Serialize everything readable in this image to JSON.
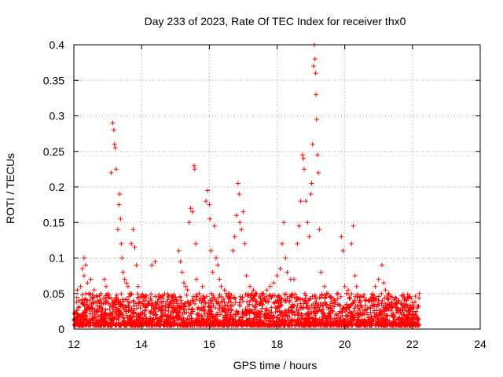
{
  "chart_data": {
    "type": "scatter",
    "title": "Day 233 of 2023, Rate Of TEC Index for receiver thx0",
    "xlabel": "GPS time / hours",
    "ylabel": "ROTI / TECUs",
    "xlim": [
      12,
      24
    ],
    "ylim": [
      0,
      0.4
    ],
    "xticks": [
      "12",
      "14",
      "16",
      "18",
      "20",
      "22",
      "24"
    ],
    "xtick_values": [
      12,
      14,
      16,
      18,
      20,
      22,
      24
    ],
    "yticks": [
      "0",
      "0.05",
      "0.1",
      "0.15",
      "0.2",
      "0.25",
      "0.3",
      "0.35",
      "0.4"
    ],
    "ytick_values": [
      0,
      0.05,
      0.1,
      0.15,
      0.2,
      0.25,
      0.3,
      0.35,
      0.4
    ],
    "grid": true,
    "marker": "+",
    "color": "#ff0000",
    "data_extent_hours": [
      12.0,
      22.2
    ],
    "series": [
      {
        "name": "thx0",
        "points": [
          [
            12.1,
            0.055
          ],
          [
            12.15,
            0.04
          ],
          [
            12.2,
            0.06
          ],
          [
            12.25,
            0.085
          ],
          [
            12.3,
            0.1
          ],
          [
            12.3,
            0.075
          ],
          [
            12.35,
            0.09
          ],
          [
            12.4,
            0.065
          ],
          [
            12.45,
            0.05
          ],
          [
            12.5,
            0.07
          ],
          [
            12.55,
            0.045
          ],
          [
            12.6,
            0.055
          ],
          [
            12.7,
            0.04
          ],
          [
            12.8,
            0.05
          ],
          [
            12.9,
            0.07
          ],
          [
            12.95,
            0.06
          ],
          [
            13.0,
            0.05
          ],
          [
            13.05,
            0.045
          ],
          [
            13.1,
            0.22
          ],
          [
            13.15,
            0.29
          ],
          [
            13.18,
            0.28
          ],
          [
            13.2,
            0.26
          ],
          [
            13.22,
            0.255
          ],
          [
            13.25,
            0.225
          ],
          [
            13.3,
            0.14
          ],
          [
            13.33,
            0.175
          ],
          [
            13.35,
            0.19
          ],
          [
            13.38,
            0.155
          ],
          [
            13.4,
            0.12
          ],
          [
            13.42,
            0.1
          ],
          [
            13.45,
            0.08
          ],
          [
            13.5,
            0.07
          ],
          [
            13.55,
            0.065
          ],
          [
            13.6,
            0.06
          ],
          [
            13.65,
            0.05
          ],
          [
            13.7,
            0.12
          ],
          [
            13.75,
            0.14
          ],
          [
            13.8,
            0.115
          ],
          [
            13.85,
            0.09
          ],
          [
            13.9,
            0.06
          ],
          [
            14.0,
            0.045
          ],
          [
            14.1,
            0.04
          ],
          [
            14.2,
            0.035
          ],
          [
            14.3,
            0.09
          ],
          [
            14.4,
            0.095
          ],
          [
            14.5,
            0.045
          ],
          [
            14.6,
            0.03
          ],
          [
            14.8,
            0.03
          ],
          [
            15.0,
            0.025
          ],
          [
            15.1,
            0.11
          ],
          [
            15.15,
            0.095
          ],
          [
            15.2,
            0.08
          ],
          [
            15.25,
            0.065
          ],
          [
            15.3,
            0.06
          ],
          [
            15.35,
            0.055
          ],
          [
            15.4,
            0.15
          ],
          [
            15.45,
            0.17
          ],
          [
            15.5,
            0.165
          ],
          [
            15.55,
            0.23
          ],
          [
            15.57,
            0.225
          ],
          [
            15.6,
            0.12
          ],
          [
            15.62,
            0.07
          ],
          [
            15.7,
            0.05
          ],
          [
            15.8,
            0.06
          ],
          [
            15.9,
            0.18
          ],
          [
            15.95,
            0.195
          ],
          [
            16.0,
            0.175
          ],
          [
            16.02,
            0.155
          ],
          [
            16.05,
            0.11
          ],
          [
            16.1,
            0.08
          ],
          [
            16.15,
            0.145
          ],
          [
            16.2,
            0.1
          ],
          [
            16.25,
            0.09
          ],
          [
            16.3,
            0.07
          ],
          [
            16.35,
            0.06
          ],
          [
            16.45,
            0.055
          ],
          [
            16.5,
            0.05
          ],
          [
            16.6,
            0.05
          ],
          [
            16.7,
            0.11
          ],
          [
            16.75,
            0.13
          ],
          [
            16.8,
            0.16
          ],
          [
            16.85,
            0.205
          ],
          [
            16.88,
            0.19
          ],
          [
            16.9,
            0.15
          ],
          [
            16.95,
            0.14
          ],
          [
            17.0,
            0.165
          ],
          [
            17.05,
            0.12
          ],
          [
            17.1,
            0.075
          ],
          [
            17.2,
            0.06
          ],
          [
            17.3,
            0.055
          ],
          [
            17.4,
            0.05
          ],
          [
            17.5,
            0.045
          ],
          [
            17.6,
            0.05
          ],
          [
            17.7,
            0.055
          ],
          [
            17.8,
            0.06
          ],
          [
            17.9,
            0.065
          ],
          [
            18.0,
            0.075
          ],
          [
            18.1,
            0.085
          ],
          [
            18.15,
            0.12
          ],
          [
            18.2,
            0.15
          ],
          [
            18.25,
            0.1
          ],
          [
            18.3,
            0.08
          ],
          [
            18.4,
            0.07
          ],
          [
            18.5,
            0.07
          ],
          [
            18.6,
            0.12
          ],
          [
            18.65,
            0.145
          ],
          [
            18.7,
            0.18
          ],
          [
            18.75,
            0.245
          ],
          [
            18.78,
            0.24
          ],
          [
            18.8,
            0.225
          ],
          [
            18.85,
            0.18
          ],
          [
            18.9,
            0.15
          ],
          [
            18.95,
            0.13
          ],
          [
            19.0,
            0.19
          ],
          [
            19.02,
            0.205
          ],
          [
            19.05,
            0.26
          ],
          [
            19.08,
            0.37
          ],
          [
            19.1,
            0.4
          ],
          [
            19.12,
            0.38
          ],
          [
            19.14,
            0.36
          ],
          [
            19.15,
            0.33
          ],
          [
            19.17,
            0.295
          ],
          [
            19.2,
            0.245
          ],
          [
            19.22,
            0.22
          ],
          [
            19.25,
            0.14
          ],
          [
            19.3,
            0.08
          ],
          [
            19.4,
            0.06
          ],
          [
            19.5,
            0.05
          ],
          [
            19.6,
            0.045
          ],
          [
            19.7,
            0.04
          ],
          [
            19.8,
            0.05
          ],
          [
            19.9,
            0.13
          ],
          [
            19.95,
            0.11
          ],
          [
            20.0,
            0.06
          ],
          [
            20.05,
            0.05
          ],
          [
            20.1,
            0.055
          ],
          [
            20.2,
            0.12
          ],
          [
            20.25,
            0.145
          ],
          [
            20.3,
            0.075
          ],
          [
            20.35,
            0.06
          ],
          [
            20.45,
            0.045
          ],
          [
            20.6,
            0.04
          ],
          [
            20.8,
            0.045
          ],
          [
            20.9,
            0.06
          ],
          [
            21.0,
            0.07
          ],
          [
            21.1,
            0.09
          ],
          [
            21.15,
            0.065
          ],
          [
            21.2,
            0.055
          ],
          [
            21.3,
            0.05
          ],
          [
            21.4,
            0.045
          ],
          [
            21.5,
            0.035
          ],
          [
            21.6,
            0.04
          ],
          [
            21.7,
            0.03
          ],
          [
            21.8,
            0.035
          ],
          [
            21.9,
            0.03
          ],
          [
            22.0,
            0.025
          ],
          [
            22.1,
            0.02
          ],
          [
            22.2,
            0.05
          ]
        ]
      }
    ]
  }
}
